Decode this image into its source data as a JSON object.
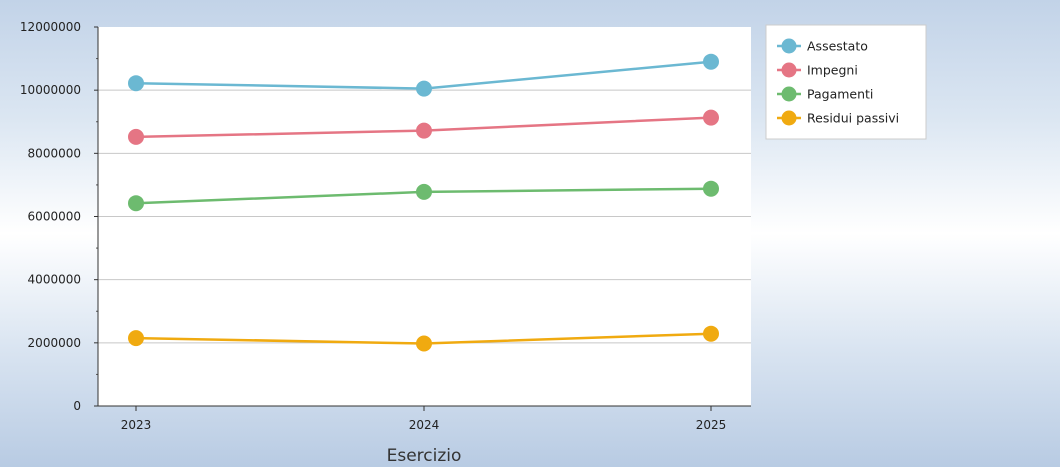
{
  "chart_data": {
    "type": "line",
    "categories": [
      "2023",
      "2024",
      "2025"
    ],
    "xlabel": "Esercizio",
    "ylabel": "",
    "ylim": [
      0,
      12000000
    ],
    "yticks": [
      "0",
      "2000000",
      "4000000",
      "6000000",
      "8000000",
      "10000000",
      "12000000"
    ],
    "grid": "horizontal",
    "legend_position": "right-top",
    "series": [
      {
        "name": "Assestato",
        "color": "#6bb8d2",
        "values": [
          10220000,
          10050000,
          10900000
        ]
      },
      {
        "name": "Impegni",
        "color": "#e57584",
        "values": [
          8520000,
          8720000,
          9130000
        ]
      },
      {
        "name": "Pagamenti",
        "color": "#6dbb6f",
        "values": [
          6420000,
          6780000,
          6880000
        ]
      },
      {
        "name": "Residui passivi",
        "color": "#f0aa10",
        "values": [
          2150000,
          1980000,
          2290000
        ]
      }
    ]
  }
}
